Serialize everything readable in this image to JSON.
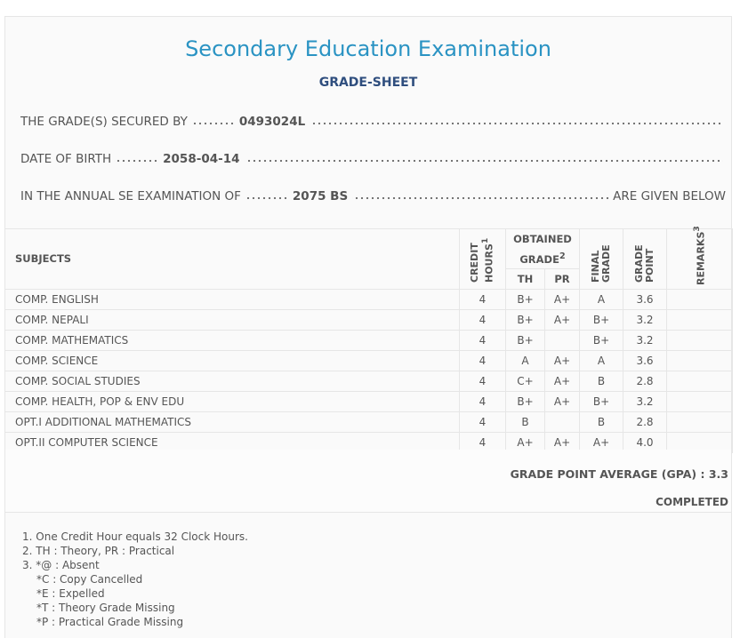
{
  "header": {
    "title": "Secondary Education Examination",
    "subtitle": "GRADE-SHEET"
  },
  "info": [
    {
      "label": "THE GRADE(S) SECURED BY",
      "value": "0493024L"
    },
    {
      "label": "DATE OF BIRTH",
      "value": "2058-04-14"
    },
    {
      "label": "IN THE ANNUAL SE EXAMINATION OF",
      "value": "2075 BS",
      "suffix": "ARE GIVEN BELOW"
    }
  ],
  "table": {
    "headers": {
      "subjects": "SUBJECTS",
      "credit_hours": "CREDIT HOURS",
      "credit_hours_note": "1",
      "obtained_grade": "OBTAINED GRADE",
      "obtained_grade_note": "2",
      "th": "TH",
      "pr": "PR",
      "final_grade": "FINAL GRADE",
      "grade_point": "GRADE POINT",
      "remarks": "REMARKS",
      "remarks_note": "3"
    },
    "rows": [
      [
        "COMP. ENGLISH",
        "4",
        "B+",
        "A+",
        "A",
        "3.6"
      ],
      [
        "COMP. NEPALI",
        "4",
        "B+",
        "A+",
        "B+",
        "3.2"
      ],
      [
        "COMP. MATHEMATICS",
        "4",
        "B+",
        null,
        "B+",
        "3.2"
      ],
      [
        "COMP. SCIENCE",
        "4",
        "A",
        "A+",
        "A",
        "3.6"
      ],
      [
        "COMP. SOCIAL STUDIES",
        "4",
        "C+",
        "A+",
        "B",
        "2.8"
      ],
      [
        "COMP. HEALTH, POP & ENV EDU",
        "4",
        "B+",
        "A+",
        "B+",
        "3.2"
      ],
      [
        "OPT.I ADDITIONAL MATHEMATICS",
        "4",
        "B",
        null,
        "B",
        "2.8"
      ],
      [
        "OPT.II COMPUTER SCIENCE",
        "4",
        "A+",
        "A+",
        "A+",
        "4.0"
      ]
    ]
  },
  "summary": {
    "gpa_label": "GRADE POINT AVERAGE (GPA) :",
    "gpa": "3.3",
    "status": "COMPLETED"
  },
  "notes": [
    {
      "number": "1.",
      "text": "One Credit Hour equals 32 Clock Hours."
    },
    {
      "number": "2.",
      "text": "TH : Theory, PR : Practical"
    },
    {
      "number": "3.",
      "text": "*@ : Absent"
    }
  ],
  "codes": [
    "*C : Copy Cancelled",
    "*E : Expelled",
    "*T : Theory Grade Missing",
    "*P : Practical Grade Missing"
  ]
}
